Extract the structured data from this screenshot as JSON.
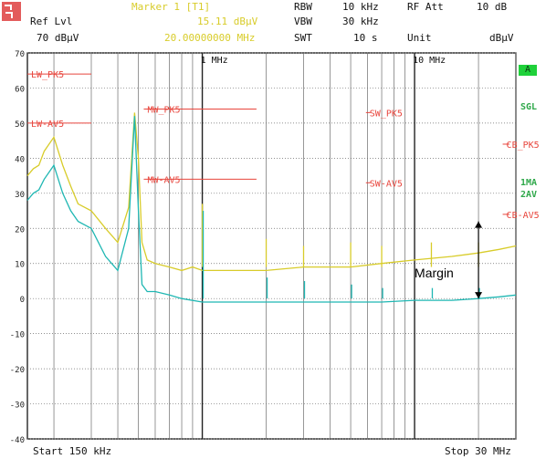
{
  "header": {
    "ref_lvl_label": "Ref Lvl",
    "ref_lvl_value": "70 dBµV",
    "marker_label": "Marker 1 [T1]",
    "marker_level": "15.11 dBµV",
    "marker_freq": "20.00000000 MHz",
    "rbw_label": "RBW",
    "rbw_value": "10 kHz",
    "vbw_label": "VBW",
    "vbw_value": "30 kHz",
    "swt_label": "SWT",
    "swt_value": "10 s",
    "rf_att_label": "RF Att",
    "rf_att_value": "10 dB",
    "unit_label": "Unit",
    "unit_value": "dBµV"
  },
  "footer": {
    "start": "Start 150 kHz",
    "stop": "Stop 30 MHz"
  },
  "side_labels": {
    "a_badge": "A",
    "sgl": "SGL",
    "trace1": "1MA",
    "trace2": "2AV"
  },
  "colors": {
    "peak_trace": "#d8cc2a",
    "avg_trace": "#1fb7b3",
    "limit_line": "#e8453c",
    "grid": "#6b6b6b",
    "badge": "#1fd13a"
  },
  "chart_data": {
    "type": "line",
    "title": "",
    "xlabel": "",
    "ylabel": "",
    "x_scale": "log",
    "xlim_mhz": [
      0.15,
      30
    ],
    "ylim": [
      -40,
      70
    ],
    "y_ticks": [
      70,
      60,
      50,
      40,
      30,
      20,
      10,
      0,
      -10,
      -20,
      -30,
      -40
    ],
    "x_tick_labels": [
      {
        "mhz": 1,
        "label": "1 MHz"
      },
      {
        "mhz": 10,
        "label": "10 MHz"
      }
    ],
    "limit_lines": [
      {
        "name": "LW_PK5",
        "from_mhz": 0.15,
        "to_mhz": 0.3,
        "level": 64
      },
      {
        "name": "LW-AV5",
        "from_mhz": 0.15,
        "to_mhz": 0.3,
        "level": 50
      },
      {
        "name": "MW_PK5",
        "from_mhz": 0.53,
        "to_mhz": 1.8,
        "level": 54
      },
      {
        "name": "MW-AV5",
        "from_mhz": 0.53,
        "to_mhz": 1.8,
        "level": 34
      },
      {
        "name": "SW_PK5",
        "from_mhz": 5.9,
        "to_mhz": 6.2,
        "level": 53
      },
      {
        "name": "SW-AV5",
        "from_mhz": 5.9,
        "to_mhz": 6.2,
        "level": 33
      },
      {
        "name": "CB_PK5",
        "from_mhz": 26,
        "to_mhz": 28,
        "level": 44
      },
      {
        "name": "CB-AV5",
        "from_mhz": 26,
        "to_mhz": 28,
        "level": 24
      }
    ],
    "series": [
      {
        "name": "1MA",
        "x_mhz": [
          0.15,
          0.16,
          0.17,
          0.18,
          0.2,
          0.22,
          0.24,
          0.26,
          0.3,
          0.35,
          0.4,
          0.45,
          0.48,
          0.5,
          0.52,
          0.55,
          0.6,
          0.7,
          0.8,
          0.9,
          1.0,
          1.2,
          1.5,
          2,
          3,
          5,
          7,
          10,
          15,
          20,
          25,
          30
        ],
        "values": [
          35,
          37,
          38,
          42,
          46,
          38,
          32,
          27,
          25,
          20,
          16,
          26,
          53,
          40,
          16,
          11,
          10,
          9,
          8,
          9,
          8,
          8,
          8,
          8,
          9,
          9,
          10,
          11,
          12,
          13,
          14,
          15
        ]
      },
      {
        "name": "2AV",
        "x_mhz": [
          0.15,
          0.16,
          0.17,
          0.18,
          0.2,
          0.22,
          0.24,
          0.26,
          0.3,
          0.35,
          0.4,
          0.45,
          0.48,
          0.5,
          0.52,
          0.55,
          0.6,
          0.7,
          0.8,
          1.0,
          1.5,
          2,
          3,
          5,
          7,
          10,
          15,
          20,
          25,
          30
        ],
        "values": [
          28,
          30,
          31,
          34,
          38,
          30,
          25,
          22,
          20,
          12,
          8,
          20,
          52,
          25,
          4,
          2,
          2,
          1,
          0,
          -1,
          -1,
          -1,
          -1,
          -1,
          -1,
          -0.5,
          -0.5,
          0,
          0.5,
          1
        ]
      }
    ],
    "spikes": [
      {
        "mhz": 1.0,
        "peak": 27,
        "avg": 25
      },
      {
        "mhz": 2.0,
        "peak": 17,
        "avg": 6
      },
      {
        "mhz": 3.0,
        "peak": 15,
        "avg": 5
      },
      {
        "mhz": 5.0,
        "peak": 16,
        "avg": 4
      },
      {
        "mhz": 7.0,
        "peak": 15,
        "avg": 3
      },
      {
        "mhz": 12.0,
        "peak": 16,
        "avg": 3
      },
      {
        "mhz": 20.0,
        "peak": 16,
        "avg": 3
      }
    ],
    "annotation": {
      "text": "Margin",
      "at_mhz": 20,
      "from": 0,
      "to": 22
    }
  }
}
